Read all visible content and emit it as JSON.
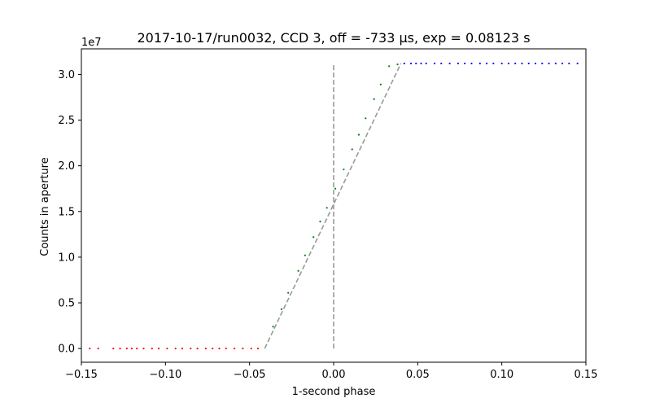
{
  "chart_data": {
    "type": "scatter",
    "title": "2017-10-17/run0032, CCD 3, off = -733 μs, exp = 0.08123 s",
    "xlabel": "1-second phase",
    "ylabel": "Counts in aperture",
    "y_multiplier_label": "1e7",
    "xlim": [
      -0.15,
      0.15
    ],
    "ylim": [
      -0.15,
      3.28
    ],
    "xticks": [
      -0.15,
      -0.1,
      -0.05,
      0.0,
      0.05,
      0.1,
      0.15
    ],
    "xtick_labels": [
      "−0.15",
      "−0.10",
      "−0.05",
      "0.00",
      "0.05",
      "0.10",
      "0.15"
    ],
    "yticks": [
      0.0,
      0.5,
      1.0,
      1.5,
      2.0,
      2.5,
      3.0
    ],
    "ytick_labels": [
      "0.0",
      "0.5",
      "1.0",
      "1.5",
      "2.0",
      "2.5",
      "3.0"
    ],
    "grid": false,
    "series": [
      {
        "color": "#ff0000",
        "x": [
          -0.145,
          -0.14,
          -0.131,
          -0.127,
          -0.123,
          -0.12,
          -0.117,
          -0.113,
          -0.108,
          -0.104,
          -0.099,
          -0.094,
          -0.09,
          -0.085,
          -0.081,
          -0.076,
          -0.072,
          -0.068,
          -0.064,
          -0.059,
          -0.054,
          -0.049,
          -0.045
        ],
        "y": [
          0,
          0,
          0,
          0,
          0,
          0,
          0,
          0,
          0,
          0,
          0,
          0,
          0,
          0,
          0,
          0,
          0,
          0,
          0,
          0,
          0,
          0,
          0
        ]
      },
      {
        "color": "#008000",
        "x": [
          -0.036,
          -0.031,
          -0.027,
          -0.021,
          -0.017,
          -0.012,
          -0.008,
          -0.004,
          0.001,
          0.006,
          0.011,
          0.015,
          0.019,
          0.024,
          0.028,
          0.033,
          0.038
        ],
        "y": [
          0.24,
          0.43,
          0.61,
          0.85,
          1.02,
          1.22,
          1.39,
          1.54,
          1.75,
          1.96,
          2.18,
          2.34,
          2.52,
          2.73,
          2.89,
          3.09,
          3.11
        ]
      },
      {
        "color": "#0000ff",
        "x": [
          0.042,
          0.046,
          0.049,
          0.052,
          0.055,
          0.06,
          0.064,
          0.069,
          0.074,
          0.078,
          0.082,
          0.087,
          0.091,
          0.095,
          0.1,
          0.104,
          0.108,
          0.112,
          0.116,
          0.12,
          0.124,
          0.128,
          0.132,
          0.136,
          0.14,
          0.145
        ],
        "y": [
          3.12,
          3.12,
          3.12,
          3.12,
          3.12,
          3.12,
          3.12,
          3.12,
          3.12,
          3.12,
          3.12,
          3.12,
          3.12,
          3.12,
          3.12,
          3.12,
          3.12,
          3.12,
          3.12,
          3.12,
          3.12,
          3.12,
          3.12,
          3.12,
          3.12,
          3.12
        ]
      }
    ],
    "fit_line": {
      "color": "#999999",
      "style": "dashed",
      "x": [
        -0.041,
        0.04
      ],
      "y": [
        0.0,
        3.12
      ]
    },
    "vline": {
      "color": "#999999",
      "style": "dashed",
      "x": 0.0,
      "y": [
        0.0,
        3.12
      ]
    }
  }
}
